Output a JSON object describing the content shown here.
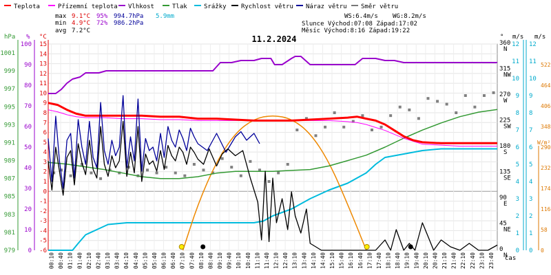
{
  "chart_data": {
    "type": "line",
    "title": "11.2.2024",
    "legend": [
      {
        "name": "Teplota",
        "color": "#ff0000"
      },
      {
        "name": "Přízemní teplota",
        "color": "#ff00ff"
      },
      {
        "name": "Vlhkost",
        "color": "#9900cc"
      },
      {
        "name": "Tlak",
        "color": "#339933"
      },
      {
        "name": "Srážky",
        "color": "#00bbdd"
      },
      {
        "name": "Rychlost větru",
        "color": "#000000"
      },
      {
        "name": "Náraz větru",
        "color": "#000099"
      },
      {
        "name": "Směr větru",
        "color": "#777777"
      }
    ],
    "stats": {
      "max_label": "max",
      "min_label": "min",
      "avg_label": "avg",
      "max_temp": "9.1°C",
      "max_hum": "95%",
      "max_press": "994.7hPa",
      "rain": "5.9mm",
      "min_temp": "4.9°C",
      "min_hum": "72%",
      "min_press": "986.2hPa",
      "avg_temp": "7.2°C",
      "ws": "WS:6.4m/s",
      "wg": "WG:8.2m/s",
      "sun": "Slunce Východ:07:08  Západ:17:02",
      "moon": "Měsíc  Východ:8:16  Západ:19:22"
    },
    "axis_units": {
      "hpa": "hPa",
      "pct": "%",
      "temp": "°C",
      "deg": "°",
      "ms": "m/s",
      "ms2": "m/s",
      "w": "W/m²",
      "time": "čas"
    },
    "temp_ticks": [
      -6,
      -5,
      -4,
      -3,
      -2,
      -1,
      0,
      1,
      2,
      3,
      4,
      5,
      6,
      7,
      8,
      9,
      10,
      11,
      12,
      13,
      14,
      15
    ],
    "pct_ticks": [
      0,
      10,
      20,
      30,
      40,
      50,
      60,
      70,
      80,
      90,
      100
    ],
    "hpa_ticks": [
      979,
      981,
      983,
      985,
      987,
      989,
      991,
      993,
      995,
      997,
      999,
      1001
    ],
    "dir_ticks": [
      {
        "v": 0,
        "t": "0",
        "d": "N"
      },
      {
        "v": 45,
        "t": "45",
        "d": "NE"
      },
      {
        "v": 90,
        "t": "90",
        "d": "E"
      },
      {
        "v": 135,
        "t": "135",
        "d": "SE"
      },
      {
        "v": 180,
        "t": "180",
        "d": "S"
      },
      {
        "v": 225,
        "t": "225",
        "d": "SW"
      },
      {
        "v": 270,
        "t": "270",
        "d": "W"
      },
      {
        "v": 315,
        "t": "315",
        "d": "NW"
      },
      {
        "v": 360,
        "t": "360",
        "d": "N"
      }
    ],
    "ms_ticks": [
      0,
      1,
      2,
      3,
      4,
      5,
      6,
      7,
      8,
      9,
      10,
      11,
      12
    ],
    "ms2_ticks": [
      0,
      1,
      2,
      3,
      4,
      5,
      6,
      7,
      8,
      9,
      10,
      11,
      12
    ],
    "solar_ticks": [
      0,
      58,
      116,
      174,
      232,
      290,
      348,
      406,
      464,
      522
    ],
    "x_ticks": [
      "00:10",
      "00:40",
      "01:10",
      "01:40",
      "02:10",
      "02:40",
      "03:10",
      "03:40",
      "04:10",
      "04:40",
      "05:10",
      "05:40",
      "06:10",
      "06:40",
      "07:10",
      "07:40",
      "08:10",
      "08:40",
      "09:10",
      "09:40",
      "10:10",
      "10:40",
      "11:10",
      "11:40",
      "12:10",
      "12:40",
      "13:10",
      "13:40",
      "14:10",
      "14:40",
      "15:10",
      "15:40",
      "16:10",
      "16:40",
      "17:10",
      "17:40",
      "18:10",
      "18:40",
      "19:10",
      "19:40",
      "20:10",
      "20:40",
      "21:10",
      "21:40",
      "22:10",
      "22:40",
      "23:10",
      "23:40"
    ],
    "temperature": {
      "x": [
        0,
        0.5,
        1,
        1.5,
        2,
        3,
        4,
        5,
        6,
        7,
        8,
        9,
        10,
        11,
        12,
        13,
        14,
        15,
        16,
        16.5,
        17,
        17.5,
        18,
        18.5,
        19,
        19.5,
        20,
        21,
        22,
        23,
        24
      ],
      "y": [
        9.0,
        8.8,
        8.3,
        7.9,
        7.7,
        7.7,
        7.7,
        7.7,
        7.6,
        7.6,
        7.4,
        7.4,
        7.3,
        7.2,
        7.2,
        7.2,
        7.3,
        7.4,
        7.5,
        7.6,
        7.4,
        7.2,
        6.8,
        6.2,
        5.6,
        5.2,
        5.0,
        4.9,
        4.9,
        4.9,
        4.9
      ]
    },
    "ground_temperature": {
      "x": [
        0,
        0.5,
        1,
        1.5,
        2,
        3,
        4,
        5,
        6,
        7,
        8,
        9,
        10,
        11,
        12,
        13,
        14,
        15,
        16,
        16.5,
        17,
        17.5,
        18,
        18.5,
        19,
        19.5,
        20,
        21,
        22,
        23,
        24
      ],
      "y": [
        8.3,
        8.1,
        7.8,
        7.6,
        7.5,
        7.5,
        7.4,
        7.4,
        7.3,
        7.3,
        7.2,
        7.2,
        7.2,
        7.2,
        7.2,
        7.2,
        7.2,
        7.2,
        7.1,
        7.0,
        6.8,
        6.5,
        6.2,
        5.8,
        5.4,
        5.1,
        4.8,
        4.7,
        4.6,
        4.6,
        4.6
      ]
    },
    "humidity": {
      "x": [
        0,
        0.4,
        0.7,
        1.0,
        1.3,
        1.7,
        2.0,
        2.7,
        3.1,
        4.0,
        5.0,
        6.0,
        7.0,
        8.0,
        8.8,
        9.2,
        9.8,
        10.3,
        11.0,
        11.4,
        11.9,
        12.1,
        12.5,
        13.0,
        13.2,
        13.5,
        14.0,
        15.0,
        16.0,
        16.4,
        16.8,
        17.5,
        18.0,
        18.5,
        19.0,
        20.0,
        21.0,
        22.0,
        23.0,
        24.0
      ],
      "y": [
        76,
        76,
        78,
        81,
        83,
        84,
        86,
        86,
        87,
        87,
        87,
        87,
        87,
        87,
        87,
        91,
        91,
        92,
        92,
        93,
        93,
        90,
        90,
        93,
        94,
        94,
        90,
        90,
        90,
        90,
        93,
        93,
        92,
        92,
        91,
        91,
        91,
        91,
        91,
        91
      ]
    },
    "pressure": {
      "x": [
        0,
        1,
        2,
        3,
        4,
        5,
        6,
        7,
        8,
        9,
        10,
        11,
        12,
        13,
        14,
        15,
        16,
        17,
        18,
        19,
        20,
        21,
        22,
        23,
        24
      ],
      "y": [
        988.8,
        988.6,
        988.3,
        988.0,
        987.6,
        987.2,
        987.0,
        987.0,
        987.2,
        987.6,
        987.8,
        987.8,
        987.8,
        987.9,
        988.0,
        988.4,
        989.0,
        989.6,
        990.5,
        991.5,
        992.4,
        993.2,
        993.9,
        994.4,
        994.7
      ]
    },
    "rain": {
      "x": [
        0,
        1.3,
        1.6,
        2.0,
        2.6,
        3.2,
        4.2,
        5.5,
        7.0,
        8.0,
        9.0,
        10.0,
        11.0,
        11.5,
        12.0,
        13.0,
        14.0,
        15.0,
        16.0,
        17.0,
        17.5,
        18.0,
        19.0,
        20.0,
        21.0,
        22.0,
        23.0,
        24.0
      ],
      "y": [
        0,
        0,
        0.4,
        0.9,
        1.2,
        1.5,
        1.6,
        1.6,
        1.6,
        1.6,
        1.6,
        1.6,
        1.6,
        1.7,
        2.0,
        2.4,
        3.0,
        3.5,
        3.9,
        4.5,
        5.0,
        5.4,
        5.6,
        5.8,
        5.9,
        5.9,
        5.9,
        5.9
      ]
    },
    "solar": {
      "x": [
        7.2,
        8,
        9,
        10,
        11,
        12,
        13,
        14,
        15,
        16,
        17.0
      ],
      "y": [
        0,
        130,
        250,
        330,
        370,
        380,
        370,
        330,
        250,
        130,
        0
      ]
    },
    "gust": {
      "x": [
        0,
        0.2,
        0.4,
        0.6,
        0.8,
        1.0,
        1.2,
        1.4,
        1.6,
        1.8,
        2.0,
        2.2,
        2.4,
        2.6,
        2.8,
        3.0,
        3.2,
        3.4,
        3.6,
        3.8,
        4.0,
        4.2,
        4.4,
        4.6,
        4.8,
        5.0,
        5.2,
        5.4,
        5.6,
        5.8,
        6.0,
        6.2,
        6.4,
        6.6,
        6.8,
        7.0,
        7.2,
        7.4,
        7.6,
        7.8,
        8.0,
        8.5,
        9.0,
        9.5,
        10.0,
        10.3,
        10.6,
        11.0,
        11.3
      ],
      "y": [
        6.5,
        4.0,
        7.8,
        5.2,
        3.6,
        6.4,
        6.8,
        4.2,
        7.6,
        6.0,
        5.0,
        7.5,
        5.4,
        4.8,
        8.6,
        5.8,
        5.0,
        6.4,
        5.5,
        6.0,
        9.0,
        4.8,
        6.6,
        5.2,
        8.8,
        4.6,
        6.5,
        5.8,
        6.0,
        5.2,
        6.8,
        5.4,
        7.2,
        6.4,
        6.0,
        7.0,
        6.5,
        5.8,
        7.1,
        6.6,
        6.2,
        5.8,
        6.8,
        5.7,
        6.6,
        6.9,
        6.4,
        6.8,
        6.2
      ]
    },
    "wind_speed": {
      "x": [
        0,
        0.2,
        0.4,
        0.6,
        0.8,
        1.0,
        1.2,
        1.4,
        1.6,
        1.8,
        2.0,
        2.2,
        2.4,
        2.6,
        2.8,
        3.0,
        3.2,
        3.4,
        3.6,
        3.8,
        4.0,
        4.2,
        4.4,
        4.6,
        4.8,
        5.0,
        5.2,
        5.4,
        5.6,
        5.8,
        6.0,
        6.2,
        6.4,
        6.6,
        6.8,
        7.0,
        7.2,
        7.4,
        7.6,
        7.8,
        8.0,
        8.3,
        8.6,
        9.0,
        9.3,
        9.6,
        10.0,
        10.4,
        10.8,
        11.2,
        11.4,
        11.6,
        11.8,
        12.0,
        12.2,
        12.5,
        12.8,
        13.0,
        13.2,
        13.5,
        13.8,
        14.0,
        14.3,
        14.6,
        15.0,
        15.5,
        16.0,
        16.5,
        17.0,
        17.5,
        18.0,
        18.3,
        18.6,
        19.0,
        19.3,
        19.6,
        20.0,
        20.3,
        20.6,
        21.0,
        21.5,
        22.0,
        22.5,
        23.0,
        23.5,
        24.0
      ],
      "y": [
        5.2,
        3.5,
        6.0,
        4.6,
        3.2,
        5.4,
        5.8,
        3.8,
        6.2,
        5.1,
        4.4,
        6.4,
        4.7,
        4.2,
        7.2,
        5.0,
        4.3,
        5.5,
        4.8,
        5.2,
        7.5,
        4.3,
        5.7,
        4.5,
        7.2,
        4.0,
        5.6,
        5.0,
        5.2,
        4.6,
        5.8,
        4.7,
        6.1,
        5.5,
        5.2,
        6.0,
        5.7,
        5.0,
        6.0,
        5.7,
        5.3,
        5.0,
        5.9,
        4.9,
        5.6,
        5.9,
        5.5,
        5.8,
        4.2,
        2.8,
        0.6,
        4.6,
        0.5,
        4.2,
        1.6,
        3.0,
        1.2,
        3.4,
        2.0,
        1.0,
        2.4,
        0.4,
        0.2,
        0,
        0,
        0,
        0,
        0,
        0,
        0,
        0.6,
        0,
        1.2,
        0,
        0.4,
        0,
        1.6,
        0.8,
        0,
        0.6,
        0.2,
        0,
        0.4,
        0,
        0,
        0.3
      ]
    },
    "wind_dir": {
      "x": [
        0.3,
        0.7,
        1.2,
        1.8,
        2.3,
        2.8,
        3.3,
        3.8,
        4.3,
        4.8,
        5.3,
        5.8,
        6.3,
        6.8,
        7.3,
        7.8,
        8.3,
        8.8,
        9.3,
        9.8,
        10.3,
        10.8,
        11.3,
        11.8,
        12.3,
        12.8,
        13.3,
        13.8,
        14.3,
        14.8,
        15.3,
        15.8,
        16.3,
        16.8,
        17.3,
        17.8,
        18.3,
        18.8,
        19.3,
        19.8,
        20.3,
        20.8,
        21.3,
        21.8,
        22.3,
        22.8,
        23.3,
        23.8
      ],
      "y": [
        135,
        140,
        130,
        150,
        135,
        125,
        140,
        135,
        145,
        130,
        140,
        135,
        145,
        135,
        130,
        150,
        140,
        135,
        160,
        145,
        130,
        155,
        140,
        120,
        135,
        150,
        210,
        230,
        200,
        215,
        240,
        215,
        225,
        235,
        210,
        215,
        235,
        250,
        245,
        230,
        265,
        260,
        255,
        240,
        270,
        250,
        270,
        275
      ]
    },
    "sun_markers": [
      {
        "x": 7.13,
        "kind": "sunrise"
      },
      {
        "x": 17.03,
        "kind": "sunset"
      }
    ],
    "moon_markers": [
      {
        "x": 8.27,
        "kind": "moonrise"
      },
      {
        "x": 19.37,
        "kind": "moonset"
      }
    ],
    "ranges": {
      "temp": [
        -6,
        15
      ],
      "pct": [
        0,
        100
      ],
      "hpa": [
        979,
        1002
      ],
      "deg": [
        0,
        360
      ],
      "ms": [
        0,
        12
      ],
      "solar": [
        0,
        580
      ],
      "hours": [
        0,
        24
      ]
    }
  }
}
